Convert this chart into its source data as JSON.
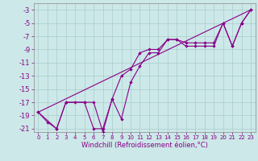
{
  "xlabel": "Windchill (Refroidissement éolien,°C)",
  "bg_color": "#cce8e8",
  "line_color": "#880088",
  "grid_color": "#aacccc",
  "xlim": [
    -0.5,
    23.5
  ],
  "ylim": [
    -21.5,
    -2.0
  ],
  "yticks": [
    -3,
    -5,
    -7,
    -9,
    -11,
    -13,
    -15,
    -17,
    -19,
    -21
  ],
  "xticks": [
    0,
    1,
    2,
    3,
    4,
    5,
    6,
    7,
    8,
    9,
    10,
    11,
    12,
    13,
    14,
    15,
    16,
    17,
    18,
    19,
    20,
    21,
    22,
    23
  ],
  "line1_x": [
    0,
    1,
    2,
    3,
    4,
    5,
    6,
    7,
    8,
    9,
    10,
    11,
    12,
    13,
    14,
    15,
    16,
    17,
    18,
    19,
    20,
    21,
    22,
    23
  ],
  "line1_y": [
    -18.5,
    -20.0,
    -21.0,
    -17.0,
    -17.0,
    -17.0,
    -21.0,
    -21.0,
    -16.5,
    -13.0,
    -12.0,
    -9.5,
    -9.0,
    -9.0,
    -7.5,
    -7.5,
    -8.0,
    -8.0,
    -8.0,
    -8.0,
    -5.0,
    -8.5,
    -5.0,
    -3.0
  ],
  "line2_x": [
    0,
    2,
    3,
    5,
    6,
    7,
    8,
    9,
    10,
    11,
    12,
    13,
    14,
    15,
    16,
    17,
    18,
    19,
    20,
    21,
    22,
    23
  ],
  "line2_y": [
    -18.5,
    -21.0,
    -17.0,
    -17.0,
    -17.0,
    -21.5,
    -16.5,
    -19.5,
    -14.0,
    -11.5,
    -9.5,
    -9.5,
    -7.5,
    -7.5,
    -8.5,
    -8.5,
    -8.5,
    -8.5,
    -5.0,
    -8.5,
    -5.0,
    -3.0
  ],
  "line3_x": [
    0,
    23
  ],
  "line3_y": [
    -18.5,
    -3.0
  ],
  "xlabel_fontsize": 6,
  "ytick_fontsize": 6,
  "xtick_fontsize": 5
}
